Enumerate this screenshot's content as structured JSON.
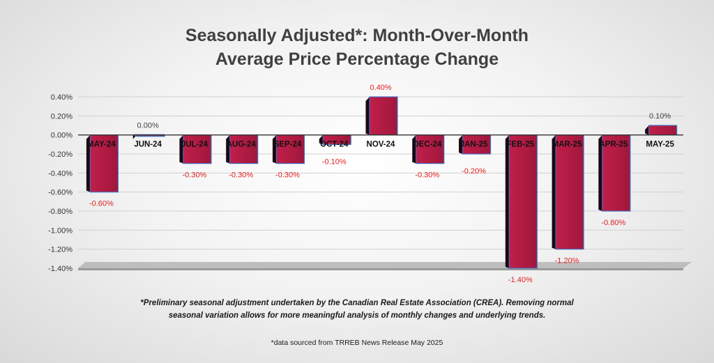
{
  "title_line1": "Seasonally Adjusted*:  Month-Over-Month",
  "title_line2": "Average Price Percentage Change",
  "footnote_line1": "*Preliminary seasonal adjustment undertaken by the Canadian Real Estate Association (CREA).  Removing normal",
  "footnote_line2": "seasonal variation allows for more meaningful analysis of monthly changes and underlying trends.",
  "source_note": "*data sourced from TRREB News Release May 2025",
  "colors": {
    "bar_front": "#a0173c",
    "bar_side": "#1c0812",
    "bar_border": "#4472c4",
    "label_negative": "#e02020",
    "label_neutral": "#404040",
    "axis_text": "#333333",
    "grid": "#d0d0d0",
    "floor": "#b8b8b8"
  },
  "chart_data": {
    "type": "bar",
    "title": "Seasonally Adjusted*:  Month-Over-Month Average Price Percentage Change",
    "xlabel": "",
    "ylabel": "",
    "ylim": [
      -1.4,
      0.4
    ],
    "yticks": [
      0.4,
      0.2,
      0.0,
      -0.2,
      -0.4,
      -0.6,
      -0.8,
      -1.0,
      -1.2,
      -1.4
    ],
    "ytick_labels": [
      "0.40%",
      "0.20%",
      "0.00%",
      "-0.20%",
      "-0.40%",
      "-0.60%",
      "-0.80%",
      "-1.00%",
      "-1.20%",
      "-1.40%"
    ],
    "categories": [
      "MAY-24",
      "JUN-24",
      "JUL-24",
      "AUG-24",
      "SEP-24",
      "OCT-24",
      "NOV-24",
      "DEC-24",
      "JAN-25",
      "FEB-25",
      "MAR-25",
      "APR-25",
      "MAY-25"
    ],
    "values": [
      -0.6,
      0.0,
      -0.3,
      -0.3,
      -0.3,
      -0.1,
      0.4,
      -0.3,
      -0.2,
      -1.4,
      -1.2,
      -0.8,
      0.1
    ],
    "value_labels": [
      "-0.60%",
      "0.00%",
      "-0.30%",
      "-0.30%",
      "-0.30%",
      "-0.10%",
      "0.40%",
      "-0.30%",
      "-0.20%",
      "-1.40%",
      "-1.20%",
      "-0.80%",
      "0.10%"
    ],
    "grid": true,
    "legend": "none"
  }
}
